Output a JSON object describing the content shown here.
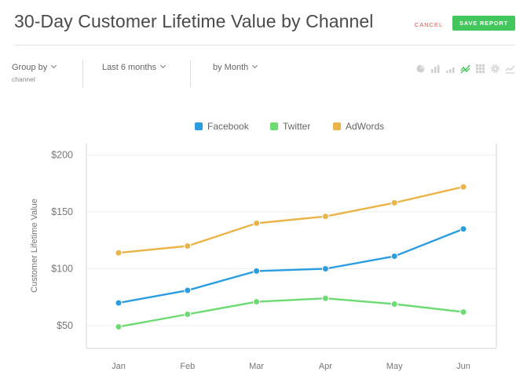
{
  "header": {
    "title": "30-Day Customer Lifetime Value by Channel",
    "cancel_label": "CANCEL",
    "save_label": "SAVE REPORT"
  },
  "controls": {
    "group_by_label": "Group by",
    "group_by_value": "channel",
    "range_label": "Last 6 months",
    "interval_label": "by Month"
  },
  "chart_icons": [
    "pie-icon",
    "bar-icon",
    "column-icon",
    "line-icon",
    "table-icon",
    "gear-icon",
    "area-icon"
  ],
  "colors": {
    "facebook": "#2a9de0",
    "twitter": "#6bdb72",
    "adwords": "#ebb449",
    "active_icon": "#43c65b",
    "inactive_icon": "#cccccc"
  },
  "chart_data": {
    "type": "line",
    "title": "",
    "xlabel": "",
    "ylabel": "Customer Lifetime Value",
    "categories": [
      "Jan",
      "Feb",
      "Mar",
      "Apr",
      "May",
      "Jun"
    ],
    "ylim": [
      30,
      210
    ],
    "yticks": [
      50,
      100,
      150,
      200
    ],
    "ytick_labels": [
      "$50",
      "$100",
      "$150",
      "$200"
    ],
    "legend_position": "top-center",
    "grid": true,
    "series": [
      {
        "name": "Facebook",
        "color": "#2a9de0",
        "values": [
          70,
          81,
          98,
          100,
          111,
          135
        ]
      },
      {
        "name": "Twitter",
        "color": "#6bdb72",
        "values": [
          49,
          60,
          71,
          74,
          69,
          62
        ]
      },
      {
        "name": "AdWords",
        "color": "#ebb449",
        "values": [
          114,
          120,
          140,
          146,
          158,
          172
        ]
      }
    ]
  }
}
